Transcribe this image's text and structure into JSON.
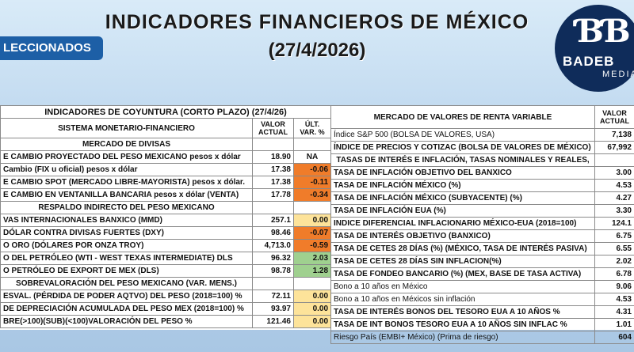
{
  "header": {
    "title": "INDICADORES FINANCIEROS DE MÉXICO",
    "date": "(27/4/2026)",
    "badge": "LECCIONADOS",
    "logo_name": "BADEB",
    "logo_media": "MEDIA"
  },
  "left": {
    "title": "INDICADORES DE COYUNTURA (CORTO PLAZO) (27/4/26)",
    "col_system": "SISTEMA MONETARIO-FINANCIERO",
    "col_value": "VALOR ACTUAL",
    "col_var": "ÚLT. VAR. %",
    "sections": [
      {
        "label": "MERCADO DE DIVISAS"
      },
      {
        "label": "RESPALDO INDIRECTO DEL PESO MEXICANO"
      },
      {
        "label": "SOBREVALORACIÓN DEL PESO MEXICANO (VAR. MENS.)"
      }
    ],
    "rows": [
      {
        "label": "E CAMBIO PROYECTADO DEL PESO MEXICANO pesos x dólar",
        "value": "18.90",
        "var": "NA",
        "color": "none"
      },
      {
        "label": "Cambio (FIX u oficial) pesos x dólar",
        "value": "17.38",
        "var": "-0.06",
        "color": "orange"
      },
      {
        "label": "E CAMBIO SPOT (MERCADO LIBRE-MAYORISTA) pesos x dólar.",
        "value": "17.38",
        "var": "-0.11",
        "color": "orange"
      },
      {
        "label": "E CAMBIO EN VENTANILLA BANCARIA pesos x dólar (VENTA)",
        "value": "17.78",
        "var": "-0.34",
        "color": "orange"
      },
      {
        "label": "VAS INTERNACIONALES BANXICO (MMD)",
        "value": "257.1",
        "var": "0.00",
        "color": "yellow"
      },
      {
        "label": "DÓLAR CONTRA DIVISAS FUERTES (DXY)",
        "value": "98.46",
        "var": "-0.07",
        "color": "orange"
      },
      {
        "label": "O ORO (DÓLARES POR ONZA TROY)",
        "value": "4,713.0",
        "var": "-0.59",
        "color": "orange"
      },
      {
        "label": "O DEL PETRÓLEO (WTI - WEST TEXAS INTERMEDIATE) DLS",
        "value": "96.32",
        "var": "2.03",
        "color": "green"
      },
      {
        "label": "O PETRÓLEO DE EXPORT DE MEX (DLS)",
        "value": "98.78",
        "var": "1.28",
        "color": "green"
      },
      {
        "label": "ESVAL. (PÉRDIDA DE PODER AQTVO) DEL PESO (2018=100) %",
        "value": "72.11",
        "var": "0.00",
        "color": "yellow"
      },
      {
        "label": "DE DEPRECIACIÓN ACUMULADA DEL PESO MEX (2018=100) %",
        "value": "93.97",
        "var": "0.00",
        "color": "yellow"
      },
      {
        "label": "BRE(>100)(SUB)(<100)VALORACIÓN DEL PESO  %",
        "value": "121.46",
        "var": "0.00",
        "color": "yellow"
      }
    ]
  },
  "right": {
    "col_market": "MERCADO DE VALORES DE RENTA VARIABLE",
    "col_value": "VALOR ACTUAL",
    "section": "TASAS DE INTERÉS E INFLACIÓN, TASAS NOMINALES Y REALES,",
    "rows": [
      {
        "label": "Índice S&P 500 (BOLSA DE VALORES, USA)",
        "value": "7,138",
        "light": true
      },
      {
        "label": "ÍNDICE DE PRECIOS Y COTIZAC (BOLSA DE VALORES DE MÉXICO)",
        "value": "67,992",
        "light": false
      },
      {
        "label": "TASA DE INFLACIÓN OBJETIVO DEL BANXICO",
        "value": "3.00",
        "light": false
      },
      {
        "label": "TASA DE INFLACIÓN MÉXICO (%)",
        "value": "4.53",
        "light": false
      },
      {
        "label": "TASA DE INFLACIÓN MÉXICO (SUBYACENTE) (%)",
        "value": "4.27",
        "light": false
      },
      {
        "label": "TASA DE INFLACIÓN EUA (%)",
        "value": "3.30",
        "light": false
      },
      {
        "label": "INDICE DIFERENCIAL INFLACIONARIO MÉXICO-EUA (2018=100)",
        "value": "124.1",
        "light": false
      },
      {
        "label": "TASA DE INTERÉS OBJETIVO (BANXICO)",
        "value": "6.75",
        "light": false
      },
      {
        "label": "TASA DE CETES 28 DÍAS (%) (MÉXICO, TASA DE INTERÉS PASIVA)",
        "value": "6.55",
        "light": false
      },
      {
        "label": "TASA DE CETES 28 DÍAS SIN INFLACION(%)",
        "value": "2.02",
        "light": false
      },
      {
        "label": "TASA DE FONDEO BANCARIO (%) (MEX, BASE DE TASA ACTIVA)",
        "value": "6.78",
        "light": false
      },
      {
        "label": "Bono a 10 años en México",
        "value": "9.06",
        "light": true
      },
      {
        "label": "Bono a 10 años en Méxicos sin inflación",
        "value": "4.53",
        "light": true
      },
      {
        "label": "TASA DE INTERÉS BONOS DEL TESORO EUA A 10 AÑOS %",
        "value": "4.31",
        "light": false
      },
      {
        "label": "TASA DE INT BONOS TESORO EUA A 10 AÑOS SIN INFLAC %",
        "value": "1.01",
        "light": false
      },
      {
        "label": "Riesgo País (EMBI+ México) (Prima de riesgo)",
        "value": "604",
        "light": true
      }
    ]
  }
}
